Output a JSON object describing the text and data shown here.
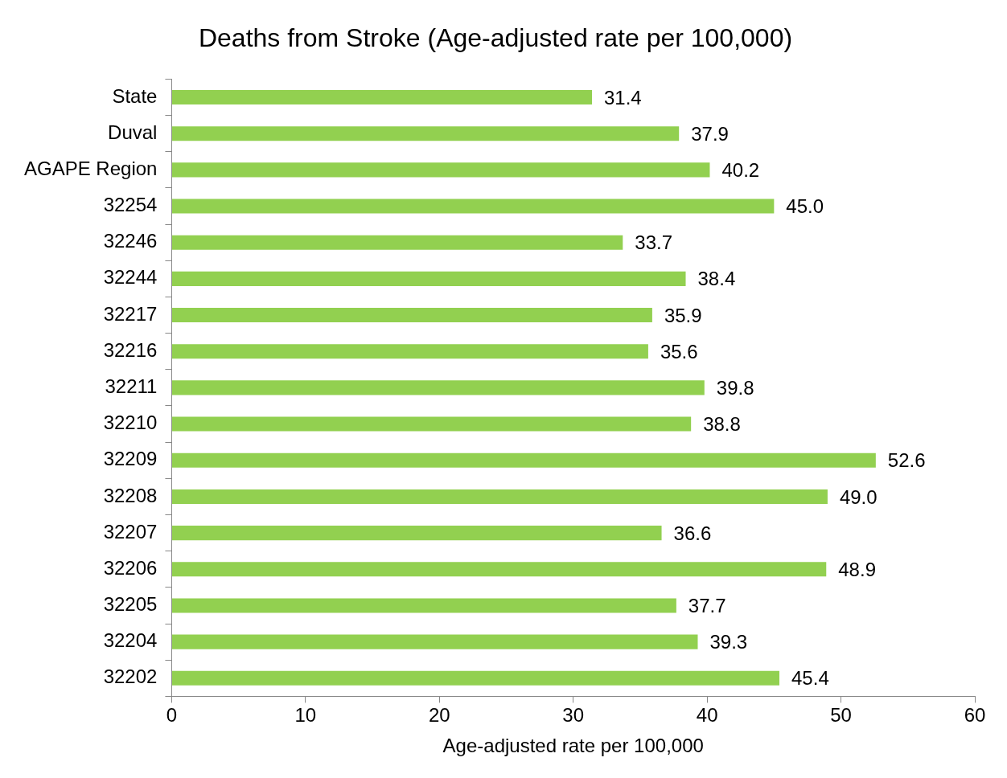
{
  "chart_data": {
    "type": "bar",
    "orientation": "horizontal",
    "title": "Deaths from Stroke (Age-adjusted rate per 100,000)",
    "xlabel": "Age-adjusted rate per 100,000",
    "categories": [
      "State",
      "Duval",
      "AGAPE Region",
      "32254",
      "32246",
      "32244",
      "32217",
      "32216",
      "32211",
      "32210",
      "32209",
      "32208",
      "32207",
      "32206",
      "32205",
      "32204",
      "32202"
    ],
    "values": [
      31.4,
      37.9,
      40.2,
      45.0,
      33.7,
      38.4,
      35.9,
      35.6,
      39.8,
      38.8,
      52.6,
      49.0,
      36.6,
      48.9,
      37.7,
      39.3,
      45.4
    ],
    "value_labels": [
      "31.4",
      "37.9",
      "40.2",
      "45.0",
      "33.7",
      "38.4",
      "35.9",
      "35.6",
      "39.8",
      "38.8",
      "52.6",
      "49.0",
      "36.6",
      "48.9",
      "37.7",
      "39.3",
      "45.4"
    ],
    "color": "#92d050",
    "xlim": [
      0,
      60
    ],
    "xticks": [
      0,
      10,
      20,
      30,
      40,
      50,
      60
    ],
    "grid": false,
    "legend": false
  }
}
